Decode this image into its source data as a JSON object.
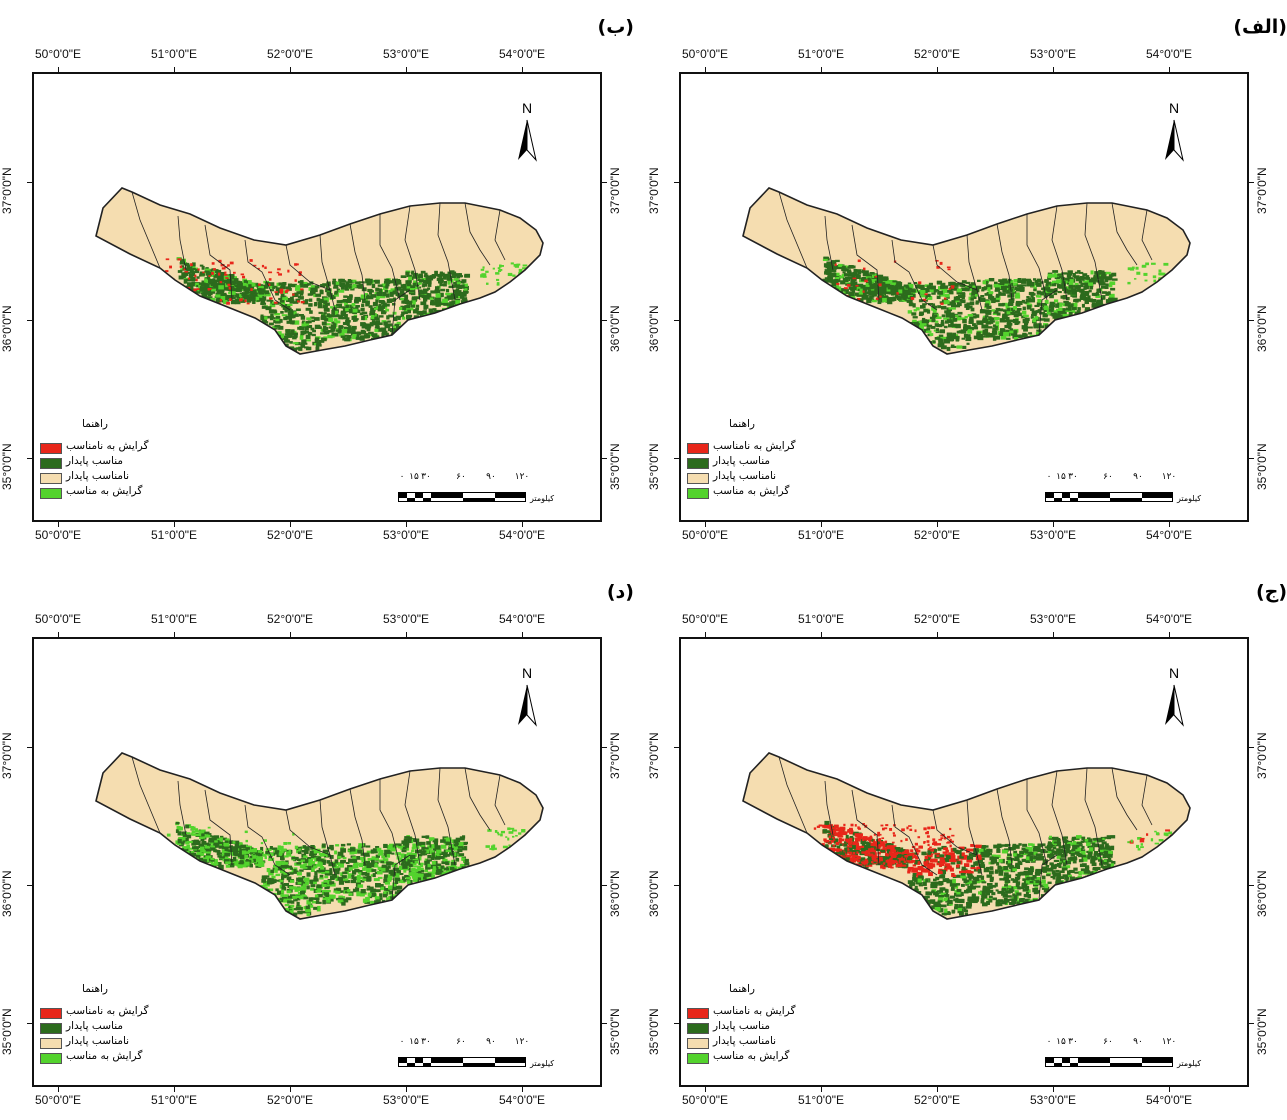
{
  "panels": [
    {
      "label": "(الف)",
      "variant": 0
    },
    {
      "label": "(ب)",
      "variant": 1
    },
    {
      "label": "(ج)",
      "variant": 2
    },
    {
      "label": "(د)",
      "variant": 3
    }
  ],
  "axes": {
    "longitude_labels": [
      "50°0'0\"E",
      "51°0'0\"E",
      "52°0'0\"E",
      "53°0'0\"E",
      "54°0'0\"E"
    ],
    "latitude_labels": [
      "37°0'0\"N",
      "36°0'0\"N",
      "35°0'0\"N"
    ]
  },
  "north_arrow": {
    "letter": "N",
    "icon": "north-arrow-icon"
  },
  "legend": {
    "title": "راهنما",
    "items": [
      {
        "label": "گرایش به نامناسب",
        "color": "#e8261a"
      },
      {
        "label": "مناسب پایدار",
        "color": "#2c6b1d"
      },
      {
        "label": "نامناسب پایدار",
        "color": "#f5ddb0"
      },
      {
        "label": "گرایش به مناسب",
        "color": "#53d32d"
      }
    ]
  },
  "scale_bar": {
    "ticks": [
      "۰",
      "۱۵",
      "۳۰",
      "۶۰",
      "۹۰",
      "۱۲۰"
    ],
    "unit": "کیلومتر"
  },
  "colors": {
    "region_fill": "#f5ddb0",
    "stable_suitable": "#2c6b1d",
    "trend_suitable": "#53d32d",
    "trend_unsuitable": "#e8261a",
    "boundary": "#222222"
  }
}
